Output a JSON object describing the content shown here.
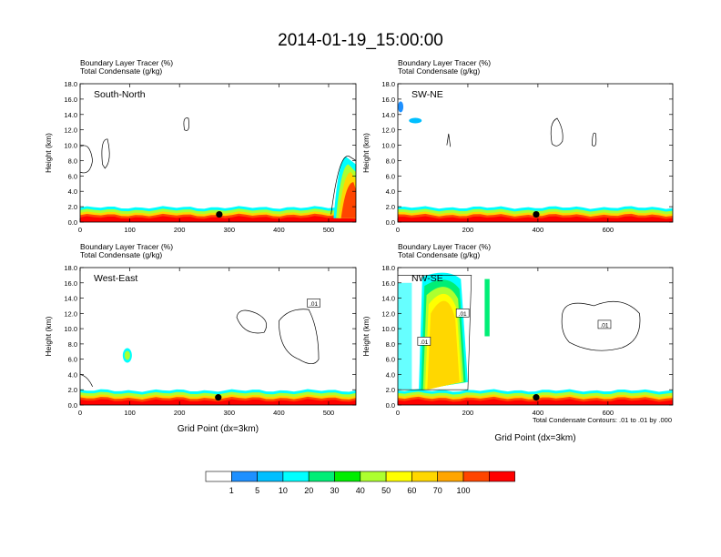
{
  "figure": {
    "title": "2014-01-19_15:00:00",
    "footnote": "Total Condensate Contours: .01 to .01 by .000"
  },
  "chart_data": [
    {
      "type": "heatmap",
      "panel_label": "South-North",
      "header_lines": [
        "Boundary Layer Tracer   (%)",
        "Total Condensate   (g/kg)"
      ],
      "xlabel": "",
      "ylabel": "Height (km)",
      "xlim": [
        0,
        555
      ],
      "ylim": [
        0,
        18
      ],
      "x_ticks": [
        0,
        100,
        200,
        300,
        400,
        500
      ],
      "y_ticks": [
        0,
        2,
        4,
        6,
        8,
        10,
        12,
        14,
        16,
        18
      ],
      "y_tick_labels": [
        "0.0",
        "2.0",
        "4.0",
        "6.0",
        "8.0",
        "10.0",
        "12.0",
        "14.0",
        "16.0",
        "18.0"
      ],
      "marker_x": 280,
      "contour_labels": []
    },
    {
      "type": "heatmap",
      "panel_label": "SW-NE",
      "header_lines": [
        "Boundary Layer Tracer   (%)",
        "Total Condensate   (g/kg)"
      ],
      "xlabel": "",
      "ylabel": "Height (km)",
      "xlim": [
        0,
        785
      ],
      "ylim": [
        0,
        18
      ],
      "x_ticks": [
        0,
        200,
        400,
        600
      ],
      "y_ticks": [
        0,
        2,
        4,
        6,
        8,
        10,
        12,
        14,
        16,
        18
      ],
      "y_tick_labels": [
        "0.0",
        "2.0",
        "4.0",
        "6.0",
        "8.0",
        "10.0",
        "12.0",
        "14.0",
        "16.0",
        "18.0"
      ],
      "marker_x": 395,
      "contour_labels": []
    },
    {
      "type": "heatmap",
      "panel_label": "West-East",
      "header_lines": [
        "Boundary Layer Tracer   (%)",
        "Total Condensate   (g/kg)"
      ],
      "xlabel": "Grid Point (dx=3km)",
      "ylabel": "Height (km)",
      "xlim": [
        0,
        555
      ],
      "ylim": [
        0,
        18
      ],
      "x_ticks": [
        0,
        100,
        200,
        300,
        400,
        500
      ],
      "y_ticks": [
        0,
        2,
        4,
        6,
        8,
        10,
        12,
        14,
        16,
        18
      ],
      "y_tick_labels": [
        "0.0",
        "2.0",
        "4.0",
        "6.0",
        "8.0",
        "10.0",
        "12.0",
        "14.0",
        "16.0",
        "18.0"
      ],
      "marker_x": 278,
      "contour_labels": [
        {
          "text": ".01",
          "x": 470,
          "y": 13.3
        }
      ]
    },
    {
      "type": "heatmap",
      "panel_label": "NW-SE",
      "header_lines": [
        "Boundary Layer Tracer   (%)",
        "Total Condensate   (g/kg)"
      ],
      "xlabel": "Grid Point (dx=3km)",
      "ylabel": "Height (km)",
      "xlim": [
        0,
        785
      ],
      "ylim": [
        0,
        18
      ],
      "x_ticks": [
        0,
        200,
        400,
        600
      ],
      "y_ticks": [
        0,
        2,
        4,
        6,
        8,
        10,
        12,
        14,
        16,
        18
      ],
      "y_tick_labels": [
        "0.0",
        "2.0",
        "4.0",
        "6.0",
        "8.0",
        "10.0",
        "12.0",
        "14.0",
        "16.0",
        "18.0"
      ],
      "marker_x": 395,
      "contour_labels": [
        {
          "text": ".01",
          "x": 185,
          "y": 12.0
        },
        {
          "text": ".01",
          "x": 75,
          "y": 8.3
        },
        {
          "text": ".01",
          "x": 590,
          "y": 10.5
        }
      ]
    }
  ],
  "colorbar": {
    "labels": [
      "1",
      "5",
      "10",
      "20",
      "30",
      "40",
      "50",
      "60",
      "70",
      "100"
    ],
    "colors": [
      "#ffffff",
      "#1e90ff",
      "#00bfff",
      "#00ffff",
      "#00ee76",
      "#00ee00",
      "#adff2f",
      "#ffff00",
      "#ffd700",
      "#ffa500",
      "#ff4500",
      "#ff0000"
    ]
  }
}
